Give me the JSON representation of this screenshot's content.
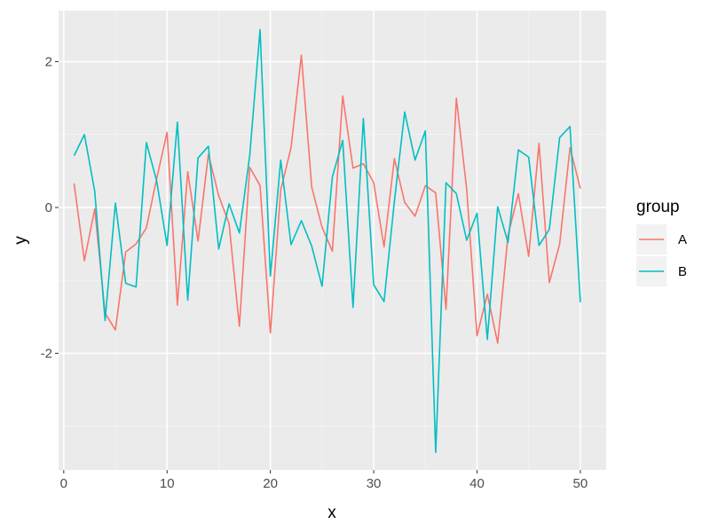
{
  "chart_data": {
    "type": "line",
    "xlabel": "x",
    "ylabel": "y",
    "xlim": [
      -0.5,
      52.5
    ],
    "ylim": [
      -3.6,
      2.7
    ],
    "x_ticks": [
      0,
      10,
      20,
      30,
      40,
      50
    ],
    "y_ticks": [
      -2,
      0,
      2
    ],
    "grid": true,
    "legend": {
      "title": "group",
      "placement": "right"
    },
    "series": [
      {
        "name": "A",
        "color": "#F8766D",
        "x": [
          1,
          2,
          3,
          4,
          5,
          6,
          7,
          8,
          9,
          10,
          11,
          12,
          13,
          14,
          15,
          16,
          17,
          18,
          19,
          20,
          21,
          22,
          23,
          24,
          25,
          26,
          27,
          28,
          29,
          30,
          31,
          32,
          33,
          34,
          35,
          36,
          37,
          38,
          39,
          40,
          41,
          42,
          43,
          44,
          45,
          46,
          47,
          48,
          49,
          50
        ],
        "y": [
          0.33,
          -0.73,
          -0.02,
          -1.45,
          -1.68,
          -0.61,
          -0.5,
          -0.28,
          0.4,
          1.03,
          -1.34,
          0.49,
          -0.46,
          0.73,
          0.16,
          -0.22,
          -1.63,
          0.55,
          0.3,
          -1.72,
          0.24,
          0.82,
          2.09,
          0.28,
          -0.27,
          -0.6,
          1.53,
          0.54,
          0.6,
          0.34,
          -0.54,
          0.67,
          0.07,
          -0.12,
          0.3,
          0.2,
          -1.4,
          1.5,
          0.25,
          -1.76,
          -1.19,
          -1.86,
          -0.38,
          0.19,
          -0.67,
          0.88,
          -1.03,
          -0.5,
          0.82,
          0.26
        ]
      },
      {
        "name": "B",
        "color": "#00BFC4",
        "x": [
          1,
          2,
          3,
          4,
          5,
          6,
          7,
          8,
          9,
          10,
          11,
          12,
          13,
          14,
          15,
          16,
          17,
          18,
          19,
          20,
          21,
          22,
          23,
          24,
          25,
          26,
          27,
          28,
          29,
          30,
          31,
          32,
          33,
          34,
          35,
          36,
          37,
          38,
          39,
          40,
          41,
          42,
          43,
          44,
          45,
          46,
          47,
          48,
          49,
          50
        ],
        "y": [
          0.71,
          1.0,
          0.22,
          -1.55,
          0.06,
          -1.04,
          -1.09,
          0.89,
          0.36,
          -0.52,
          1.17,
          -1.27,
          0.68,
          0.84,
          -0.57,
          0.05,
          -0.35,
          0.71,
          2.44,
          -0.94,
          0.65,
          -0.51,
          -0.18,
          -0.53,
          -1.08,
          0.42,
          0.92,
          -1.37,
          1.22,
          -1.06,
          -1.29,
          0.08,
          1.31,
          0.65,
          1.05,
          -3.36,
          0.34,
          0.19,
          -0.45,
          -0.08,
          -1.81,
          0.01,
          -0.48,
          0.79,
          0.69,
          -0.52,
          -0.3,
          0.96,
          1.11,
          -1.3
        ]
      }
    ]
  }
}
